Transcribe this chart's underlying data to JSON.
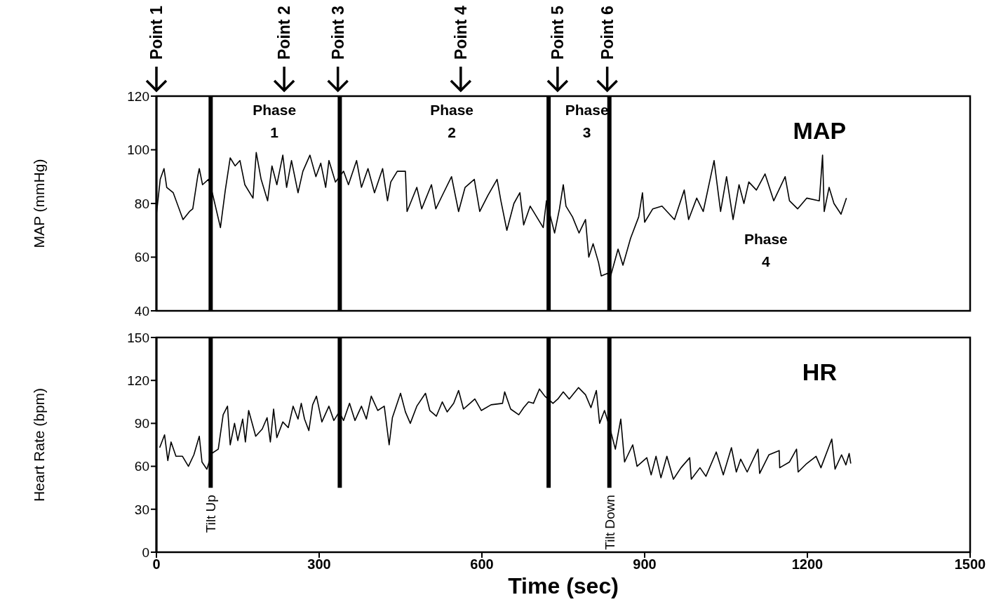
{
  "chart_data": [
    {
      "type": "line",
      "title": "MAP",
      "ylabel": "MAP (mmHg)",
      "xlim": [
        0,
        1500
      ],
      "xticks": [
        0,
        300,
        600,
        900,
        1200,
        1500
      ],
      "ylim": [
        40,
        120
      ],
      "yticks": [
        40,
        60,
        80,
        100,
        120
      ],
      "tick_labels": "y",
      "series": [
        {
          "color": "#000000",
          "x": [
            0,
            7,
            14,
            19,
            31,
            49,
            61,
            67,
            76,
            79,
            85,
            96,
            103,
            118,
            127,
            136,
            145,
            154,
            163,
            178,
            184,
            193,
            205,
            213,
            222,
            233,
            240,
            249,
            261,
            270,
            283,
            294,
            303,
            312,
            318,
            330,
            345,
            354,
            369,
            378,
            390,
            402,
            417,
            426,
            432,
            444,
            459,
            462,
            480,
            489,
            507,
            515,
            527,
            544,
            557,
            569,
            586,
            596,
            611,
            628,
            635,
            646,
            659,
            670,
            677,
            689,
            701,
            713,
            719,
            734,
            743,
            750,
            755,
            767,
            779,
            791,
            797,
            805,
            815,
            820,
            832,
            836,
            851,
            860,
            874,
            889,
            896,
            900,
            915,
            932,
            955,
            973,
            981,
            996,
            1008,
            1028,
            1040,
            1051,
            1063,
            1074,
            1083,
            1092,
            1106,
            1122,
            1138,
            1159,
            1167,
            1182,
            1199,
            1222,
            1228,
            1231,
            1240,
            1249,
            1262,
            1272
          ],
          "values": [
            76,
            89,
            93,
            86,
            84,
            74,
            77,
            78,
            90,
            93,
            87,
            89,
            84,
            71,
            85,
            97,
            94,
            96,
            87,
            82,
            99,
            89,
            81,
            94,
            87,
            98,
            86,
            96,
            84,
            92,
            98,
            90,
            95,
            86,
            96,
            88,
            92,
            87,
            96,
            86,
            93,
            84,
            93,
            81,
            88,
            92,
            92,
            77,
            86,
            78,
            87,
            78,
            83,
            90,
            77,
            86,
            89,
            77,
            83,
            89,
            81,
            70,
            80,
            84,
            72,
            79,
            75,
            71,
            81,
            69,
            78,
            87,
            79,
            75,
            69,
            74,
            60,
            65,
            58,
            53,
            54,
            52,
            63,
            57,
            67,
            75,
            84,
            73,
            78,
            79,
            74,
            85,
            74,
            82,
            77,
            96,
            77,
            90,
            74,
            87,
            80,
            88,
            85,
            91,
            81,
            90,
            81,
            78,
            82,
            81,
            98,
            77,
            86,
            80,
            76,
            82
          ]
        }
      ],
      "ref_lines": [
        {
          "axis": "x",
          "value": 100,
          "color": "#000000"
        },
        {
          "axis": "x",
          "value": 338,
          "color": "#000000"
        },
        {
          "axis": "x",
          "value": 723,
          "color": "#000000"
        },
        {
          "axis": "x",
          "value": 835,
          "color": "#000000"
        }
      ],
      "annotations": [
        "Point 1",
        "Point 2",
        "Point 3",
        "Point 4",
        "Point 5",
        "Point 6",
        "Phase 1",
        "Phase 2",
        "Phase 3",
        "Phase 4"
      ]
    },
    {
      "type": "line",
      "title": "HR",
      "ylabel": "Heart Rate (bpm)",
      "xlabel": "Time (sec)",
      "xlim": [
        0,
        1500
      ],
      "xticks": [
        0,
        300,
        600,
        900,
        1200,
        1500
      ],
      "ylim": [
        0,
        150
      ],
      "yticks": [
        0,
        30,
        60,
        90,
        120,
        150
      ],
      "series": [
        {
          "color": "#000000",
          "x": [
            6,
            15,
            21,
            27,
            36,
            48,
            59,
            69,
            79,
            84,
            93,
            102,
            114,
            123,
            131,
            136,
            144,
            150,
            159,
            164,
            170,
            183,
            195,
            204,
            210,
            216,
            222,
            233,
            243,
            252,
            261,
            267,
            273,
            281,
            288,
            295,
            305,
            318,
            327,
            337,
            345,
            356,
            366,
            378,
            387,
            396,
            408,
            420,
            429,
            435,
            450,
            459,
            468,
            480,
            496,
            504,
            516,
            527,
            536,
            548,
            557,
            566,
            578,
            587,
            599,
            617,
            638,
            642,
            653,
            668,
            677,
            686,
            695,
            706,
            716,
            731,
            740,
            750,
            761,
            778,
            791,
            801,
            811,
            817,
            826,
            835,
            846,
            856,
            863,
            878,
            886,
            904,
            912,
            921,
            930,
            941,
            953,
            967,
            983,
            986,
            1002,
            1013,
            1032,
            1045,
            1060,
            1069,
            1077,
            1089,
            1109,
            1112,
            1129,
            1148,
            1149,
            1167,
            1180,
            1183,
            1199,
            1216,
            1225,
            1245,
            1251,
            1263,
            1271,
            1277,
            1280
          ],
          "values": [
            73,
            82,
            64,
            77,
            67,
            67,
            60,
            68,
            81,
            63,
            58,
            69,
            72,
            96,
            102,
            75,
            90,
            78,
            93,
            77,
            99,
            81,
            86,
            94,
            77,
            100,
            80,
            91,
            87,
            102,
            93,
            104,
            93,
            85,
            103,
            109,
            91,
            102,
            92,
            98,
            92,
            104,
            92,
            102,
            93,
            109,
            99,
            102,
            75,
            94,
            111,
            98,
            90,
            102,
            111,
            99,
            95,
            105,
            98,
            104,
            113,
            100,
            104,
            107,
            99,
            103,
            104,
            112,
            100,
            96,
            101,
            105,
            104,
            114,
            109,
            104,
            107,
            112,
            107,
            115,
            110,
            101,
            113,
            90,
            99,
            88,
            72,
            93,
            63,
            75,
            60,
            66,
            54,
            67,
            52,
            67,
            51,
            59,
            66,
            51,
            59,
            53,
            70,
            54,
            73,
            56,
            65,
            56,
            72,
            55,
            68,
            71,
            59,
            63,
            72,
            56,
            62,
            67,
            59,
            79,
            58,
            68,
            61,
            69,
            62
          ]
        }
      ],
      "ref_lines": [
        {
          "axis": "x",
          "value": 100,
          "color": "#000000",
          "label": "Tilt Up"
        },
        {
          "axis": "x",
          "value": 338,
          "color": "#000000"
        },
        {
          "axis": "x",
          "value": 723,
          "color": "#000000"
        },
        {
          "axis": "x",
          "value": 835,
          "color": "#000000",
          "label": "Tilt Down"
        }
      ]
    }
  ]
}
